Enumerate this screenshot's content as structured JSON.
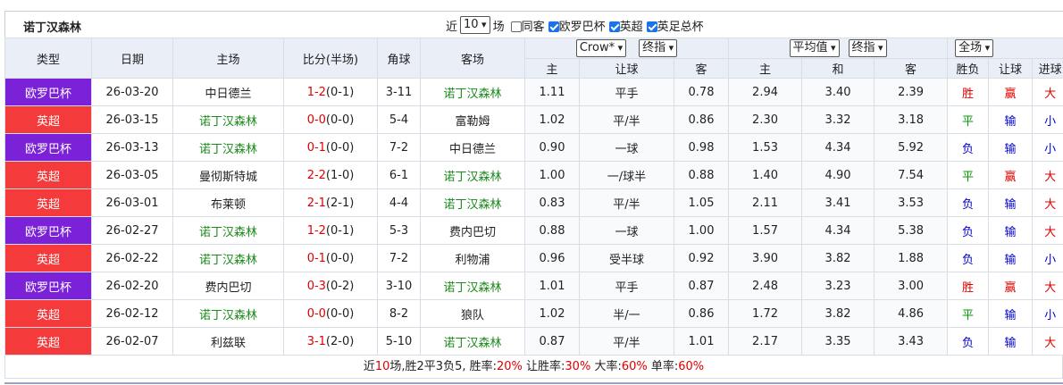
{
  "header": {
    "title": "诺丁汉森林",
    "recent_prefix": "近",
    "recent_count": "10",
    "recent_suffix": "场",
    "filters": [
      "同客",
      "欧罗巴杯",
      "英超",
      "英足总杯"
    ],
    "filter_checked": [
      false,
      true,
      true,
      true
    ]
  },
  "table": {
    "columns": [
      "类型",
      "日期",
      "主场",
      "比分(半场)",
      "角球",
      "客场"
    ],
    "odds_selects": [
      "Crow*",
      "终指"
    ],
    "avg_selects": [
      "平均值",
      "终指"
    ],
    "result_select": "全场",
    "sub_columns": [
      "主",
      "让球",
      "客",
      "主",
      "和",
      "客",
      "胜负",
      "让球",
      "进球"
    ],
    "type_colors": {
      "欧罗巴杯": "#7b22d8",
      "英超": "#f43a3a"
    },
    "result_colors": {
      "胜": "#e00000",
      "平": "#009900",
      "负": "#0000cc",
      "赢": "#e00000",
      "输": "#0000cc",
      "大": "#e00000",
      "小": "#0000cc"
    },
    "rows": [
      [
        "欧罗巴杯",
        "26-03-20",
        "中日德兰",
        "1-2",
        "(0-1)",
        "3-11",
        "诺丁汉森林",
        "1.11",
        "平手",
        "0.78",
        "2.94",
        "3.40",
        "2.39",
        "胜",
        "赢",
        "大"
      ],
      [
        "英超",
        "26-03-15",
        "诺丁汉森林",
        "0-0",
        "(0-0)",
        "5-4",
        "富勒姆",
        "1.02",
        "平/半",
        "0.86",
        "2.30",
        "3.32",
        "3.18",
        "平",
        "输",
        "小"
      ],
      [
        "欧罗巴杯",
        "26-03-13",
        "诺丁汉森林",
        "0-1",
        "(0-0)",
        "7-2",
        "中日德兰",
        "0.90",
        "一球",
        "0.98",
        "1.53",
        "4.34",
        "5.92",
        "负",
        "输",
        "小"
      ],
      [
        "英超",
        "26-03-05",
        "曼彻斯特城",
        "2-2",
        "(1-0)",
        "6-1",
        "诺丁汉森林",
        "1.00",
        "一/球半",
        "0.88",
        "1.40",
        "4.90",
        "7.54",
        "平",
        "赢",
        "大"
      ],
      [
        "英超",
        "26-03-01",
        "布莱顿",
        "2-1",
        "(2-1)",
        "4-4",
        "诺丁汉森林",
        "0.83",
        "平/半",
        "1.05",
        "2.11",
        "3.41",
        "3.53",
        "负",
        "输",
        "大"
      ],
      [
        "欧罗巴杯",
        "26-02-27",
        "诺丁汉森林",
        "1-2",
        "(0-1)",
        "5-3",
        "费内巴切",
        "0.88",
        "一球",
        "1.00",
        "1.57",
        "4.34",
        "5.38",
        "负",
        "输",
        "大"
      ],
      [
        "英超",
        "26-02-22",
        "诺丁汉森林",
        "0-1",
        "(0-0)",
        "7-2",
        "利物浦",
        "0.96",
        "受半球",
        "0.92",
        "3.90",
        "3.82",
        "1.88",
        "负",
        "输",
        "小"
      ],
      [
        "欧罗巴杯",
        "26-02-20",
        "费内巴切",
        "0-3",
        "(0-2)",
        "3-10",
        "诺丁汉森林",
        "1.01",
        "平手",
        "0.87",
        "2.48",
        "3.23",
        "3.00",
        "胜",
        "赢",
        "大"
      ],
      [
        "英超",
        "26-02-12",
        "诺丁汉森林",
        "0-0",
        "(0-0)",
        "8-2",
        "狼队",
        "1.02",
        "半/一",
        "0.86",
        "1.72",
        "3.82",
        "4.86",
        "平",
        "输",
        "小"
      ],
      [
        "英超",
        "26-02-07",
        "利兹联",
        "3-1",
        "(2-0)",
        "5-10",
        "诺丁汉森林",
        "0.87",
        "平/半",
        "1.01",
        "2.17",
        "3.35",
        "3.43",
        "负",
        "输",
        "大"
      ]
    ]
  },
  "footer": [
    "近",
    "10",
    "场,胜2平3负5, 胜率:",
    "20%",
    " 让胜率:",
    "30%",
    " 大率:",
    "60%",
    " 单率:",
    "60%"
  ]
}
